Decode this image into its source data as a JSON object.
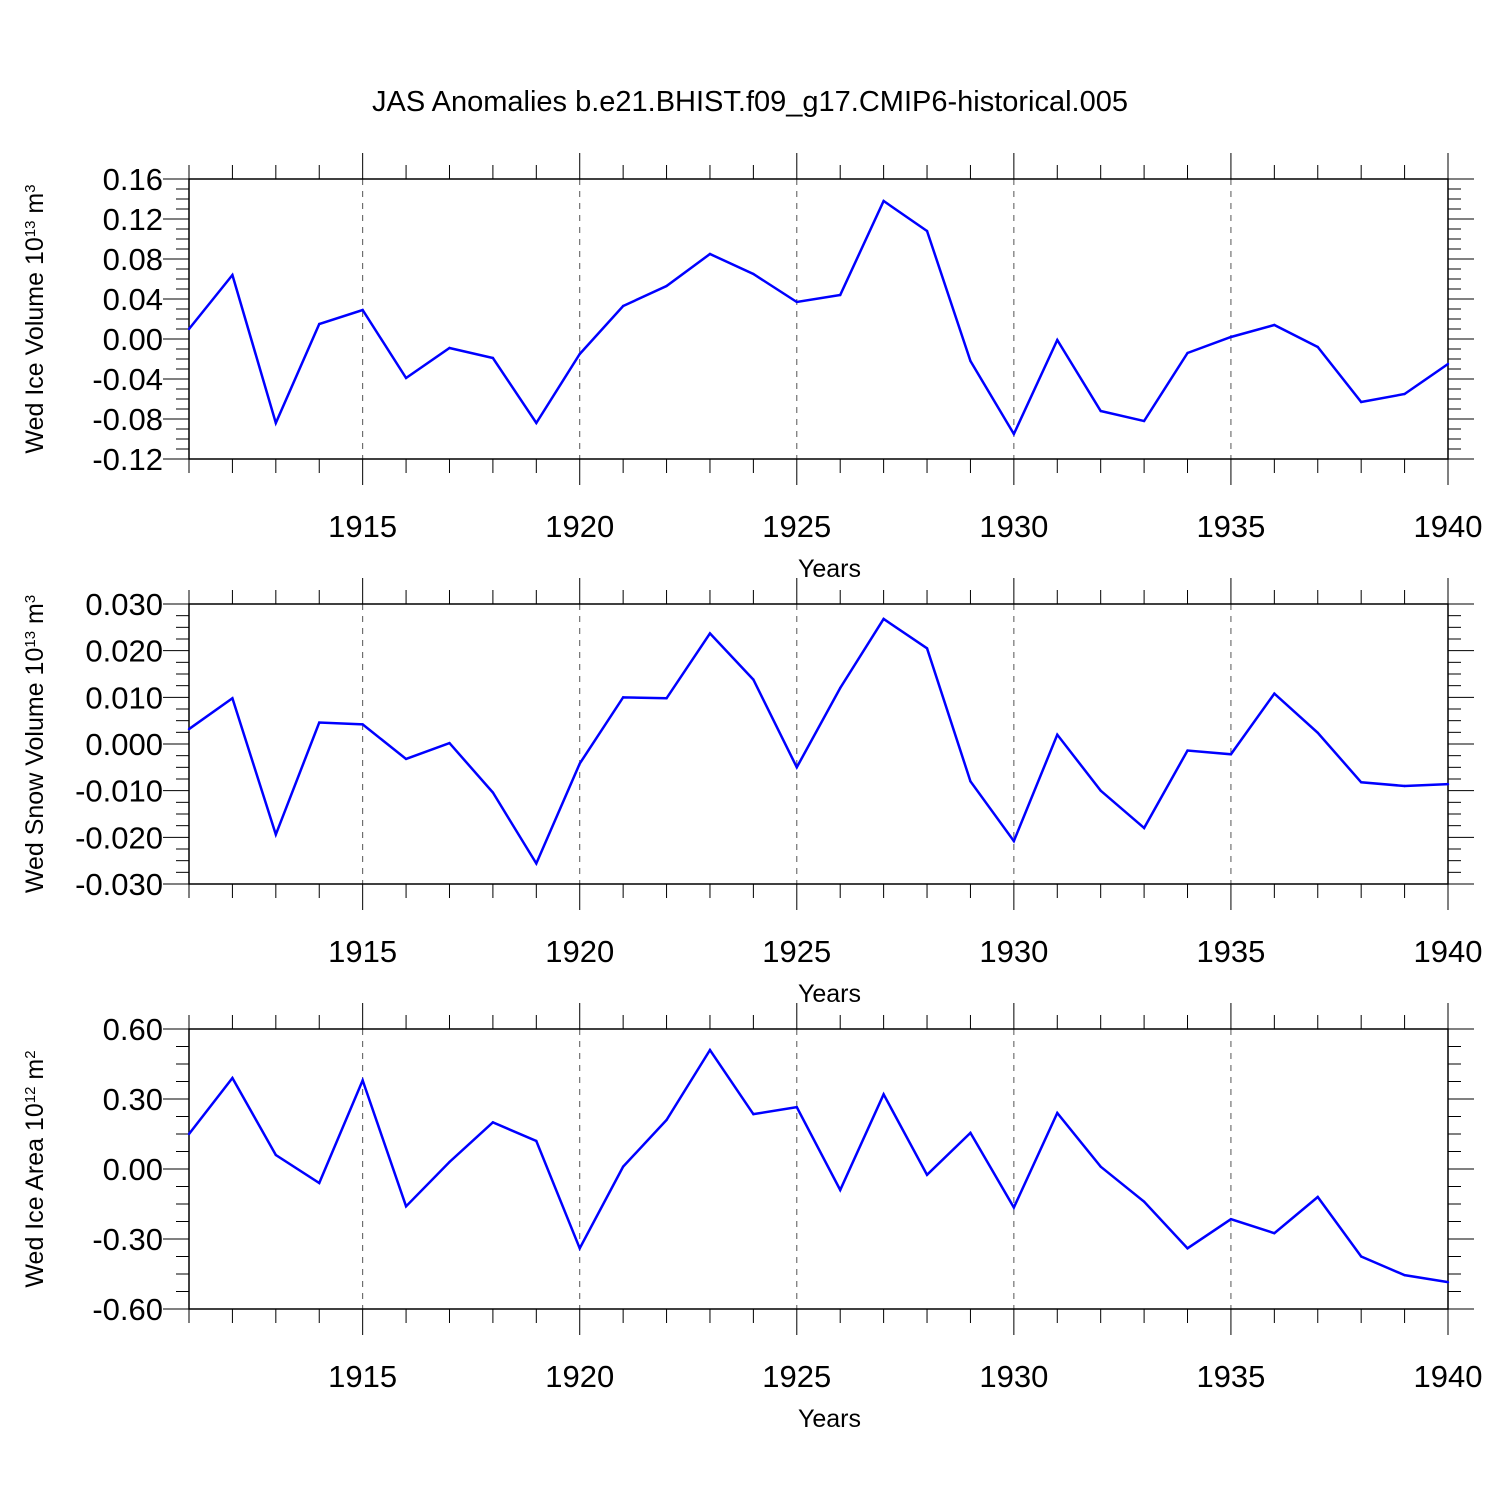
{
  "figure": {
    "title": "JAS Anomalies b.e21.BHIST.f09_g17.CMIP6-historical.005"
  },
  "chart_data": [
    {
      "type": "line",
      "ylabel": "Wed Ice Volume 10",
      "ylabel_exp": "13",
      "ylabel_unit": " m",
      "ylabel_unit_exp": "3",
      "xlabel": "Years",
      "xlim": [
        1911,
        1940
      ],
      "ylim": [
        -0.12,
        0.16
      ],
      "yticks": [
        -0.12,
        -0.08,
        -0.04,
        0.0,
        0.04,
        0.08,
        0.12,
        0.16
      ],
      "ytick_labels": [
        "-0.12",
        "-0.08",
        "-0.04",
        "0.00",
        "0.04",
        "0.08",
        "0.12",
        "0.16"
      ],
      "xticks": [
        1915,
        1920,
        1925,
        1930,
        1935,
        1940
      ],
      "xtick_labels": [
        "1915",
        "1920",
        "1925",
        "1930",
        "1935",
        "1940"
      ],
      "grid": "dashed vertical at major x ticks",
      "line_color": "#0000ff",
      "x": [
        1911,
        1912,
        1913,
        1914,
        1915,
        1916,
        1917,
        1918,
        1919,
        1920,
        1921,
        1922,
        1923,
        1924,
        1925,
        1926,
        1927,
        1928,
        1929,
        1930,
        1931,
        1932,
        1933,
        1934,
        1935,
        1936,
        1937,
        1938,
        1939,
        1940
      ],
      "values": [
        0.01,
        0.064,
        -0.084,
        0.015,
        0.029,
        -0.039,
        -0.009,
        -0.019,
        -0.084,
        -0.015,
        0.033,
        0.053,
        0.085,
        0.065,
        0.037,
        0.044,
        0.138,
        0.108,
        -0.022,
        -0.095,
        -0.001,
        -0.072,
        -0.082,
        -0.014,
        0.002,
        0.014,
        -0.008,
        -0.063,
        -0.055,
        -0.025
      ]
    },
    {
      "type": "line",
      "ylabel": "Wed Snow Volume 10",
      "ylabel_exp": "13",
      "ylabel_unit": " m",
      "ylabel_unit_exp": "3",
      "xlabel": "Years",
      "xlim": [
        1911,
        1940
      ],
      "ylim": [
        -0.03,
        0.03
      ],
      "yticks": [
        -0.03,
        -0.02,
        -0.01,
        0.0,
        0.01,
        0.02,
        0.03
      ],
      "ytick_labels": [
        "-0.030",
        "-0.020",
        "-0.010",
        "0.000",
        "0.010",
        "0.020",
        "0.030"
      ],
      "xticks": [
        1915,
        1920,
        1925,
        1930,
        1935,
        1940
      ],
      "xtick_labels": [
        "1915",
        "1920",
        "1925",
        "1930",
        "1935",
        "1940"
      ],
      "grid": "dashed vertical at major x ticks",
      "line_color": "#0000ff",
      "x": [
        1911,
        1912,
        1913,
        1914,
        1915,
        1916,
        1917,
        1918,
        1919,
        1920,
        1921,
        1922,
        1923,
        1924,
        1925,
        1926,
        1927,
        1928,
        1929,
        1930,
        1931,
        1932,
        1933,
        1934,
        1935,
        1936,
        1937,
        1938,
        1939,
        1940
      ],
      "values": [
        0.0032,
        0.0098,
        -0.0194,
        0.0046,
        0.0042,
        -0.0032,
        0.0002,
        -0.0104,
        -0.0256,
        -0.0042,
        0.01,
        0.0098,
        0.0237,
        0.0138,
        -0.005,
        0.012,
        0.0268,
        0.0205,
        -0.008,
        -0.0208,
        0.002,
        -0.01,
        -0.018,
        -0.0014,
        -0.0022,
        0.0108,
        0.0024,
        -0.0082,
        -0.009,
        -0.0086
      ]
    },
    {
      "type": "line",
      "ylabel": "Wed Ice Area 10",
      "ylabel_exp": "12",
      "ylabel_unit": " m",
      "ylabel_unit_exp": "2",
      "xlabel": "Years",
      "xlim": [
        1911,
        1940
      ],
      "ylim": [
        -0.6,
        0.6
      ],
      "yticks": [
        -0.6,
        -0.3,
        0.0,
        0.3,
        0.6
      ],
      "ytick_labels": [
        "-0.60",
        "-0.30",
        "0.00",
        "0.30",
        "0.60"
      ],
      "xticks": [
        1915,
        1920,
        1925,
        1930,
        1935,
        1940
      ],
      "xtick_labels": [
        "1915",
        "1920",
        "1925",
        "1930",
        "1935",
        "1940"
      ],
      "grid": "dashed vertical at major x ticks",
      "line_color": "#0000ff",
      "x": [
        1911,
        1912,
        1913,
        1914,
        1915,
        1916,
        1917,
        1918,
        1919,
        1920,
        1921,
        1922,
        1923,
        1924,
        1925,
        1926,
        1927,
        1928,
        1929,
        1930,
        1931,
        1932,
        1933,
        1934,
        1935,
        1936,
        1937,
        1938,
        1939,
        1940
      ],
      "values": [
        0.15,
        0.39,
        0.06,
        -0.06,
        0.38,
        -0.16,
        0.03,
        0.2,
        0.12,
        -0.34,
        0.01,
        0.21,
        0.51,
        0.235,
        0.265,
        -0.09,
        0.32,
        -0.025,
        0.155,
        -0.165,
        0.24,
        0.01,
        -0.14,
        -0.34,
        -0.215,
        -0.275,
        -0.12,
        -0.375,
        -0.455,
        -0.485
      ]
    }
  ]
}
